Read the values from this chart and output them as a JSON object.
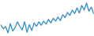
{
  "values": [
    -1.5,
    -2.2,
    -1.8,
    -2.9,
    -1.3,
    -2.6,
    -2.0,
    -1.0,
    -1.8,
    -2.4,
    -1.0,
    -2.8,
    -1.5,
    -2.5,
    -1.2,
    -1.8,
    -1.0,
    -1.6,
    -0.9,
    -1.4,
    -0.6,
    -1.2,
    -0.4,
    -0.9,
    -0.2,
    -0.8,
    0.2,
    -0.3,
    0.6,
    0.1,
    1.0,
    0.4,
    1.4,
    0.5,
    1.8,
    1.0,
    2.2,
    0.8,
    1.5,
    0.4
  ],
  "line_color": "#2b8ac8",
  "bg_color": "#ffffff",
  "linewidth": 0.9
}
